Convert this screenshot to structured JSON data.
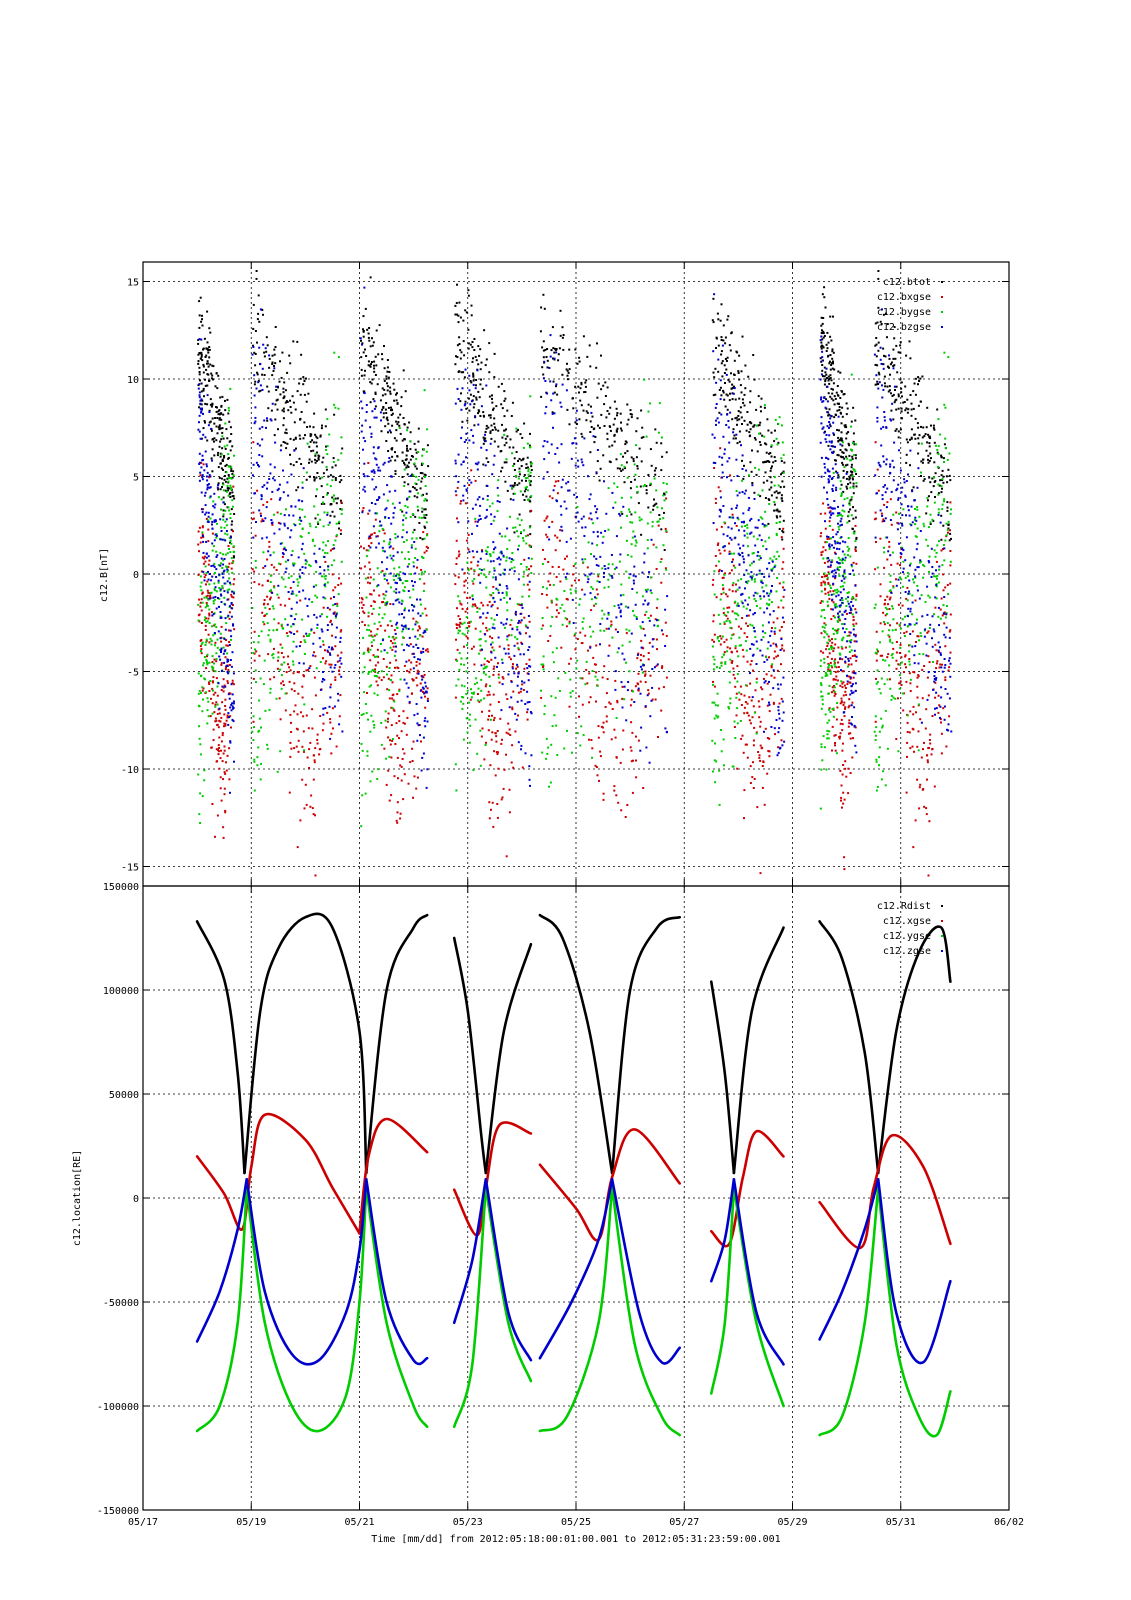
{
  "title": "",
  "xaxis": {
    "label": "Time [mm/dd]  from 2012:05:18:00:01:00.001  to  2012:05:31:23:59:00.001",
    "range": [
      "05/17",
      "06/02"
    ],
    "ticks": [
      "05/17",
      "05/19",
      "05/21",
      "05/23",
      "05/25",
      "05/27",
      "05/29",
      "05/31",
      "06/02"
    ]
  },
  "chart_data": [
    {
      "type": "scatter",
      "name": "magnetic-field",
      "ylabel": "c12.B[nT]",
      "ylim": [
        -16,
        16
      ],
      "yticks": [
        -15,
        -10,
        -5,
        0,
        5,
        10,
        15
      ],
      "yticklabels": [
        "-15",
        "-10",
        "-5",
        "0",
        "5",
        "10",
        "15"
      ],
      "grid": true,
      "legend_position": "top-right",
      "series": [
        {
          "name": "c12.btot",
          "color": "#000000"
        },
        {
          "name": "c12.bxgse",
          "color": "#cc0000"
        },
        {
          "name": "c12.bygse",
          "color": "#00cc00"
        },
        {
          "name": "c12.bzgse",
          "color": "#0000cc"
        }
      ],
      "data_intervals": [
        {
          "start": "05/18 00:00",
          "end": "05/18 16:00"
        },
        {
          "start": "05/19 00:00",
          "end": "05/20 16:00"
        },
        {
          "start": "05/21 00:00",
          "end": "05/22 06:00"
        },
        {
          "start": "05/22 18:00",
          "end": "05/24 04:00"
        },
        {
          "start": "05/24 08:00",
          "end": "05/26 16:00"
        },
        {
          "start": "05/27 12:00",
          "end": "05/28 20:00"
        },
        {
          "start": "05/29 12:00",
          "end": "05/30 04:00"
        },
        {
          "start": "05/30 12:00",
          "end": "05/31 22:00"
        }
      ]
    },
    {
      "type": "line",
      "name": "location",
      "ylabel": "c12.location[RE]",
      "ylim": [
        -150000,
        150000
      ],
      "yticks": [
        -150000,
        -100000,
        -50000,
        0,
        50000,
        100000,
        150000
      ],
      "yticklabels": [
        "-150000",
        "-100000",
        "-50000",
        "0",
        "50000",
        "100000",
        "150000"
      ],
      "grid": true,
      "legend_position": "top-right",
      "series": [
        {
          "name": "c12.Rdist",
          "color": "#000000",
          "segments": [
            {
              "x": [
                "05/18 00:00",
                "05/18 12:00",
                "05/18 18:00",
                "05/18 21:00"
              ],
              "y": [
                133000,
                105000,
                60000,
                12000
              ]
            },
            {
              "x": [
                "05/18 21:00",
                "05/19 04:00",
                "05/19 12:00",
                "05/20 00:00",
                "05/20 12:00",
                "05/21 00:00",
                "05/21 03:00"
              ],
              "y": [
                12000,
                90000,
                120000,
                135000,
                130000,
                80000,
                12000
              ]
            },
            {
              "x": [
                "05/21 03:00",
                "05/21 12:00",
                "05/22 00:00",
                "05/22 06:00"
              ],
              "y": [
                12000,
                100000,
                130000,
                136000
              ]
            },
            {
              "x": [
                "05/22 18:00",
                "05/23 00:00",
                "05/23 06:00",
                "05/23 08:00"
              ],
              "y": [
                125000,
                90000,
                30000,
                12000
              ]
            },
            {
              "x": [
                "05/23 08:00",
                "05/23 16:00",
                "05/24 04:00"
              ],
              "y": [
                12000,
                80000,
                122000
              ]
            },
            {
              "x": [
                "05/24 08:00",
                "05/24 18:00",
                "05/25 06:00",
                "05/25 16:00"
              ],
              "y": [
                136000,
                125000,
                80000,
                12000
              ]
            },
            {
              "x": [
                "05/25 16:00",
                "05/26 00:00",
                "05/26 12:00",
                "05/26 22:00"
              ],
              "y": [
                12000,
                100000,
                130000,
                135000
              ]
            },
            {
              "x": [
                "05/27 12:00",
                "05/27 18:00",
                "05/27 22:00"
              ],
              "y": [
                104000,
                60000,
                12000
              ]
            },
            {
              "x": [
                "05/27 22:00",
                "05/28 06:00",
                "05/28 20:00"
              ],
              "y": [
                12000,
                90000,
                130000
              ]
            },
            {
              "x": [
                "05/29 12:00",
                "05/29 22:00",
                "05/30 08:00",
                "05/30 14:00"
              ],
              "y": [
                133000,
                115000,
                70000,
                12000
              ]
            },
            {
              "x": [
                "05/30 14:00",
                "05/30 22:00",
                "05/31 08:00",
                "05/31 18:00",
                "05/31 22:00"
              ],
              "y": [
                12000,
                80000,
                118000,
                130000,
                104000
              ]
            }
          ]
        },
        {
          "name": "c12.xgse",
          "color": "#cc0000",
          "segments": [
            {
              "x": [
                "05/18 00:00",
                "05/18 12:00",
                "05/18 20:00",
                "05/19 00:00",
                "05/19 06:00",
                "05/20 00:00",
                "05/20 12:00",
                "05/21 00:00"
              ],
              "y": [
                20000,
                2000,
                -15000,
                15000,
                40000,
                28000,
                5000,
                -17000
              ]
            },
            {
              "x": [
                "05/21 00:00",
                "05/21 04:00",
                "05/21 12:00",
                "05/22 06:00"
              ],
              "y": [
                -17000,
                20000,
                38000,
                22000
              ]
            },
            {
              "x": [
                "05/22 18:00",
                "05/23 04:00",
                "05/23 08:00",
                "05/23 14:00",
                "05/24 04:00"
              ],
              "y": [
                4000,
                -18000,
                5000,
                35000,
                31000
              ]
            },
            {
              "x": [
                "05/24 08:00",
                "05/25 00:00",
                "05/25 10:00",
                "05/25 16:00",
                "05/26 02:00",
                "05/26 22:00"
              ],
              "y": [
                16000,
                -5000,
                -20000,
                10000,
                33000,
                7000
              ]
            },
            {
              "x": [
                "05/27 12:00",
                "05/27 20:00",
                "05/28 02:00",
                "05/28 08:00",
                "05/28 20:00"
              ],
              "y": [
                -16000,
                -22000,
                10000,
                32000,
                20000
              ]
            },
            {
              "x": [
                "05/29 12:00",
                "05/30 06:00",
                "05/30 12:00",
                "05/30 20:00",
                "05/31 10:00",
                "05/31 22:00"
              ],
              "y": [
                -2000,
                -24000,
                5000,
                30000,
                15000,
                -22000
              ]
            }
          ]
        },
        {
          "name": "c12.ygse",
          "color": "#00cc00",
          "segments": [
            {
              "x": [
                "05/18 00:00",
                "05/18 10:00",
                "05/18 18:00",
                "05/18 22:00"
              ],
              "y": [
                -112000,
                -100000,
                -60000,
                5000
              ]
            },
            {
              "x": [
                "05/18 22:00",
                "05/19 06:00",
                "05/19 18:00",
                "05/20 06:00",
                "05/20 18:00",
                "05/21 00:00",
                "05/21 03:00"
              ],
              "y": [
                5000,
                -60000,
                -100000,
                -112000,
                -95000,
                -50000,
                5000
              ]
            },
            {
              "x": [
                "05/21 03:00",
                "05/21 12:00",
                "05/22 00:00",
                "05/22 06:00"
              ],
              "y": [
                5000,
                -60000,
                -100000,
                -110000
              ]
            },
            {
              "x": [
                "05/22 18:00",
                "05/23 02:00",
                "05/23 08:00"
              ],
              "y": [
                -110000,
                -80000,
                5000
              ]
            },
            {
              "x": [
                "05/23 08:00",
                "05/23 18:00",
                "05/24 04:00"
              ],
              "y": [
                5000,
                -60000,
                -88000
              ]
            },
            {
              "x": [
                "05/24 08:00",
                "05/24 20:00",
                "05/25 10:00",
                "05/25 16:00"
              ],
              "y": [
                -112000,
                -105000,
                -60000,
                5000
              ]
            },
            {
              "x": [
                "05/25 16:00",
                "05/26 02:00",
                "05/26 14:00",
                "05/26 22:00"
              ],
              "y": [
                5000,
                -70000,
                -105000,
                -114000
              ]
            },
            {
              "x": [
                "05/27 12:00",
                "05/27 18:00",
                "05/27 22:00"
              ],
              "y": [
                -94000,
                -60000,
                5000
              ]
            },
            {
              "x": [
                "05/27 22:00",
                "05/28 08:00",
                "05/28 20:00"
              ],
              "y": [
                5000,
                -60000,
                -100000
              ]
            },
            {
              "x": [
                "05/29 12:00",
                "05/29 22:00",
                "05/30 08:00",
                "05/30 14:00"
              ],
              "y": [
                -114000,
                -105000,
                -60000,
                5000
              ]
            },
            {
              "x": [
                "05/30 14:00",
                "05/30 22:00",
                "05/31 08:00",
                "05/31 16:00",
                "05/31 22:00"
              ],
              "y": [
                5000,
                -70000,
                -105000,
                -114000,
                -93000
              ]
            }
          ]
        },
        {
          "name": "c12.zgse",
          "color": "#0000cc",
          "segments": [
            {
              "x": [
                "05/18 00:00",
                "05/18 10:00",
                "05/18 18:00",
                "05/18 22:00"
              ],
              "y": [
                -69000,
                -45000,
                -15000,
                9000
              ]
            },
            {
              "x": [
                "05/18 22:00",
                "05/19 06:00",
                "05/19 18:00",
                "05/20 06:00",
                "05/20 18:00",
                "05/21 00:00",
                "05/21 03:00"
              ],
              "y": [
                9000,
                -45000,
                -75000,
                -78000,
                -55000,
                -25000,
                9000
              ]
            },
            {
              "x": [
                "05/21 03:00",
                "05/21 12:00",
                "05/22 00:00",
                "05/22 06:00"
              ],
              "y": [
                9000,
                -50000,
                -78000,
                -77000
              ]
            },
            {
              "x": [
                "05/22 18:00",
                "05/23 02:00",
                "05/23 08:00"
              ],
              "y": [
                -60000,
                -30000,
                9000
              ]
            },
            {
              "x": [
                "05/23 08:00",
                "05/23 18:00",
                "05/24 04:00"
              ],
              "y": [
                9000,
                -55000,
                -78000
              ]
            },
            {
              "x": [
                "05/24 08:00",
                "05/24 22:00",
                "05/25 10:00",
                "05/25 16:00"
              ],
              "y": [
                -77000,
                -50000,
                -20000,
                9000
              ]
            },
            {
              "x": [
                "05/25 16:00",
                "05/26 04:00",
                "05/26 14:00",
                "05/26 22:00"
              ],
              "y": [
                9000,
                -55000,
                -79000,
                -72000
              ]
            },
            {
              "x": [
                "05/27 12:00",
                "05/27 18:00",
                "05/27 22:00"
              ],
              "y": [
                -40000,
                -20000,
                9000
              ]
            },
            {
              "x": [
                "05/27 22:00",
                "05/28 08:00",
                "05/28 20:00"
              ],
              "y": [
                9000,
                -55000,
                -80000
              ]
            },
            {
              "x": [
                "05/29 12:00",
                "05/29 22:00",
                "05/30 08:00",
                "05/30 14:00"
              ],
              "y": [
                -68000,
                -45000,
                -15000,
                9000
              ]
            },
            {
              "x": [
                "05/30 14:00",
                "05/30 22:00",
                "05/31 10:00",
                "05/31 22:00"
              ],
              "y": [
                9000,
                -55000,
                -79000,
                -40000
              ]
            }
          ]
        }
      ]
    }
  ]
}
